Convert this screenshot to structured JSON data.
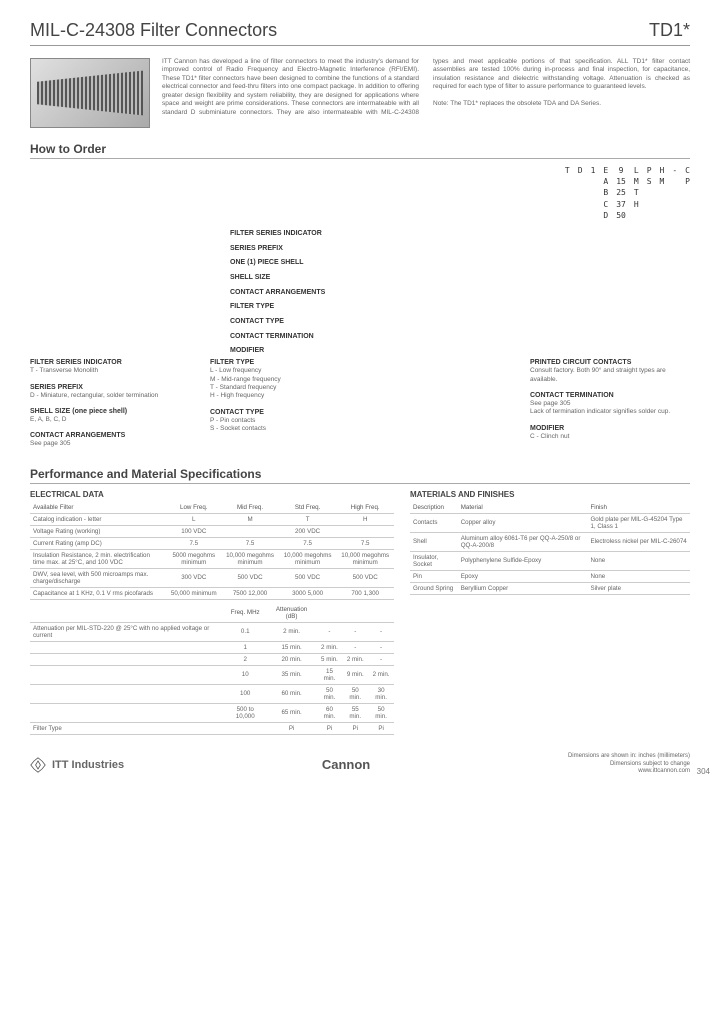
{
  "header": {
    "title": "MIL-C-24308 Filter Connectors",
    "code": "TD1*"
  },
  "intro": {
    "para1": "ITT Cannon has developed a line of filter connectors to meet the industry's demand for improved control of Radio Frequency and Electro-Magnetic Interference (RFI/EMI). These TD1* filter connectors have been designed to combine the functions of a standard electrical connector and feed-thru filters into one compact package. In addition to offering greater design flexibility and system reliability, they are designed for applications where space and weight are prime considerations. These connectors are intermateable with all standard D subminiature",
    "para2": "connectors. They are also intermateable with MIL-C-24308 types and meet applicable portions of that specification. ALL TD1* filter contact assemblies are tested 100% during in-process and final inspection, for capacitance, insulation resistance and dielectric withstanding voltage. Attenuation is checked as required for each type of filter to assure performance to guaranteed levels.",
    "note": "Note: The TD1* replaces the obsolete TDA and DA Series."
  },
  "howToOrder": {
    "heading": "How to Order",
    "codeCols": [
      [
        "T"
      ],
      [
        "D"
      ],
      [
        "1"
      ],
      [
        "E",
        "A",
        "B",
        "C",
        "D"
      ],
      [
        "9",
        "15",
        "25",
        "37",
        "50"
      ],
      [
        "L",
        "M",
        "T",
        "H"
      ],
      [
        "P",
        "S"
      ],
      [
        "H",
        "M"
      ],
      [
        "-"
      ],
      [
        "C",
        "P"
      ]
    ],
    "labels": [
      "FILTER SERIES INDICATOR",
      "SERIES PREFIX",
      "ONE (1) PIECE SHELL",
      "SHELL SIZE",
      "CONTACT ARRANGEMENTS",
      "FILTER TYPE",
      "CONTACT TYPE",
      "CONTACT TERMINATION",
      "MODIFIER"
    ],
    "keys": {
      "left": [
        {
          "title": "FILTER SERIES INDICATOR",
          "items": [
            "T - Transverse Monolith"
          ]
        },
        {
          "title": "SERIES PREFIX",
          "items": [
            "D - Miniature, rectangular, solder termination"
          ]
        },
        {
          "title": "SHELL SIZE (one piece shell)",
          "items": [
            "E, A, B, C, D"
          ]
        },
        {
          "title": "CONTACT ARRANGEMENTS",
          "items": [
            "See page 305"
          ]
        }
      ],
      "center": [
        {
          "title": "FILTER TYPE",
          "items": [
            "L - Low frequency",
            "M - Mid-range frequency",
            "T - Standard frequency",
            "H - High frequency"
          ]
        },
        {
          "title": "CONTACT TYPE",
          "items": [
            "P - Pin contacts",
            "S - Socket contacts"
          ]
        }
      ],
      "right": [
        {
          "title": "PRINTED CIRCUIT CONTACTS",
          "items": [
            "Consult factory. Both 90° and straight types are available."
          ]
        },
        {
          "title": "CONTACT TERMINATION",
          "items": [
            "See page 305",
            "Lack of termination indicator signifies solder cup."
          ]
        },
        {
          "title": "MODIFIER",
          "items": [
            "C - Clinch nut"
          ]
        }
      ]
    }
  },
  "specs": {
    "heading": "Performance and Material Specifications",
    "electrical": {
      "subheading": "ELECTRICAL DATA",
      "headers": [
        "Available Filter",
        "Low Freq.",
        "Mid Freq.",
        "Std Freq.",
        "High Freq."
      ],
      "rows": [
        [
          "Catalog indication - letter",
          "L",
          "M",
          "T",
          "H"
        ],
        [
          "Voltage Rating (working)",
          "100 VDC",
          "",
          "200 VDC",
          ""
        ],
        [
          "Current Rating (amp DC)",
          "7.5",
          "7.5",
          "7.5",
          "7.5"
        ],
        [
          "Insulation Resistance, 2 min. electrification time max. at 25°C, and 100 VDC",
          "5000 megohms minimum",
          "10,000 megohms minimum",
          "10,000 megohms minimum",
          "10,000 megohms minimum"
        ],
        [
          "DWV, sea level, with 500 microamps max. charge/discharge",
          "300 VDC",
          "500 VDC",
          "500 VDC",
          "500 VDC"
        ],
        [
          "Capacitance at 1 KHz, 0.1 V rms picofarads",
          "50,000 minimum",
          "7500 12,000",
          "3000 5,000",
          "700 1,300"
        ]
      ],
      "attenHeader": [
        "",
        "Freq. MHz",
        "Attenuation (dB)",
        "",
        "",
        ""
      ],
      "attenRows": [
        [
          "Attenuation per MIL-STD-220 @ 25°C with no applied voltage or current",
          "0.1",
          "2 min.",
          "-",
          "-",
          "-"
        ],
        [
          "",
          "1",
          "15 min.",
          "2 min.",
          "-",
          "-"
        ],
        [
          "",
          "2",
          "20 min.",
          "5 min.",
          "2 min.",
          "-"
        ],
        [
          "",
          "10",
          "35 min.",
          "15 min.",
          "9 min.",
          "2 min."
        ],
        [
          "",
          "100",
          "60 min.",
          "50 min.",
          "50 min.",
          "30 min."
        ],
        [
          "",
          "500 to 10,000",
          "65 min.",
          "60 min.",
          "55 min.",
          "50 min."
        ]
      ],
      "pinRow": [
        "Filter Type",
        "",
        "Pi",
        "Pi",
        "Pi",
        "Pi"
      ]
    },
    "materials": {
      "subheading": "MATERIALS AND FINISHES",
      "headers": [
        "Description",
        "Material",
        "Finish"
      ],
      "rows": [
        [
          "Contacts",
          "Copper alloy",
          "Gold plate per MIL-G-45204 Type 1, Class 1"
        ],
        [
          "Shell",
          "Aluminum alloy 6061-T6 per QQ-A-250/8 or QQ-A-200/8",
          "Electroless nickel per MIL-C-26074"
        ],
        [
          "Insulator, Socket",
          "Polyphenylene Sulfide-Epoxy",
          "None"
        ],
        [
          "Pin",
          "Epoxy",
          "None"
        ],
        [
          "Ground Spring",
          "Beryllium Copper",
          "Silver plate"
        ]
      ]
    }
  },
  "footer": {
    "company": "ITT Industries",
    "brand": "Cannon",
    "note1": "Dimensions are shown in: inches (millimeters)",
    "note2": "Dimensions subject to change",
    "url": "www.ittcannon.com",
    "pageNum": "304"
  }
}
